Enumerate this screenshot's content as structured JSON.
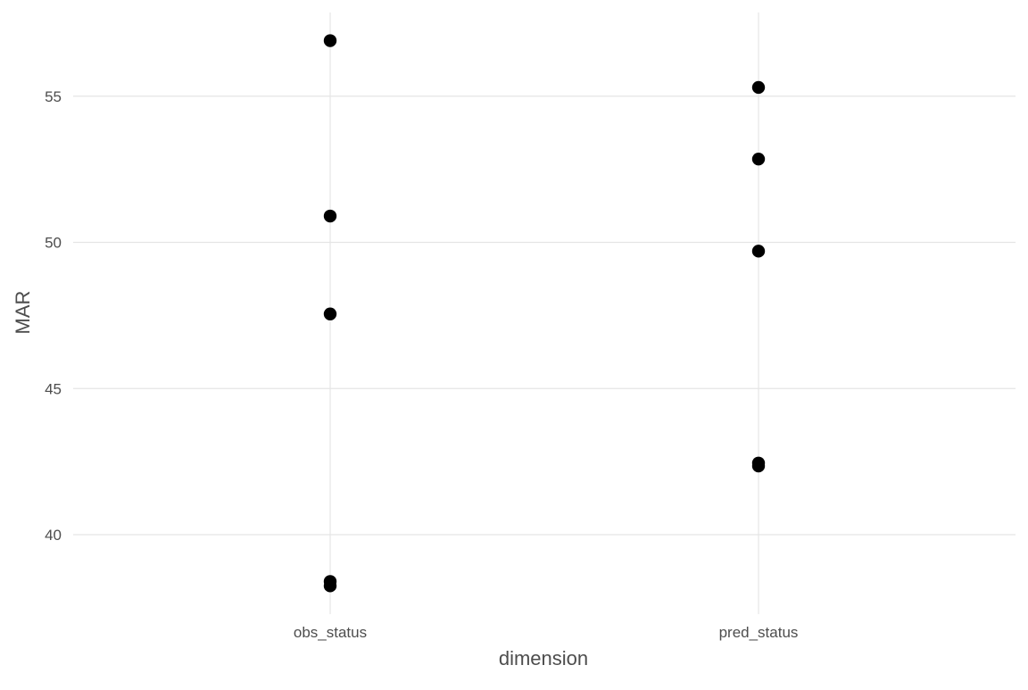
{
  "chart_data": {
    "type": "scatter",
    "title": "",
    "xlabel": "dimension",
    "ylabel": "MAR",
    "categories": [
      "obs_status",
      "pred_status"
    ],
    "ylim": [
      37.5,
      58.2
    ],
    "yticks": [
      40,
      45,
      50,
      55
    ],
    "grid": true,
    "legend": "none",
    "colors": {
      "point": "#000000",
      "grid": "#e5e5e5",
      "text": "#4d4d4d",
      "background": "#ffffff"
    },
    "points": [
      {
        "x": "obs_status",
        "y": 56.9
      },
      {
        "x": "obs_status",
        "y": 50.9
      },
      {
        "x": "obs_status",
        "y": 47.55
      },
      {
        "x": "obs_status",
        "y": 38.4
      },
      {
        "x": "obs_status",
        "y": 38.25
      },
      {
        "x": "pred_status",
        "y": 55.3
      },
      {
        "x": "pred_status",
        "y": 52.85
      },
      {
        "x": "pred_status",
        "y": 49.7
      },
      {
        "x": "pred_status",
        "y": 42.45
      },
      {
        "x": "pred_status",
        "y": 42.35
      }
    ]
  }
}
